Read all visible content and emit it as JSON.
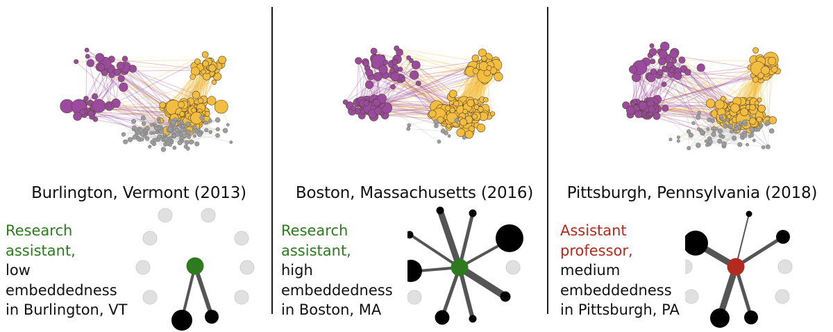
{
  "colors": {
    "purple": "#9b4b9f",
    "gold": "#f3bd3f",
    "gray_node": "#9d9d9d",
    "green": "#2d7a1f",
    "red": "#b32b1e",
    "black": "#000000",
    "inactive": "#e0e0e0"
  },
  "panels": [
    {
      "city": "Burlington, Vermont (2013)",
      "role_lines": [
        "Research",
        "assistant,"
      ],
      "role_color": "#2d7a1f",
      "detail_lines": [
        "low",
        "embeddedness",
        "in Burlington, VT"
      ],
      "network": {
        "purple": 55,
        "gold": 150,
        "gray": 140
      },
      "ego": {
        "center_color": "#2d7a1f",
        "links": [
          {
            "target": "bottom-left-node",
            "weight": 4,
            "size": "large"
          },
          {
            "target": "bottom-right-node",
            "weight": 6,
            "size": "small"
          }
        ],
        "inactive_slots": 8
      }
    },
    {
      "city": "Boston, Massachusetts (2016)",
      "role_lines": [
        "Research",
        "assistant,"
      ],
      "role_color": "#2d7a1f",
      "detail_lines": [
        "high",
        "embeddedness",
        "in Boston, MA"
      ],
      "network": {
        "purple": 90,
        "gold": 240,
        "gray": 10
      },
      "ego": {
        "center_color": "#2d7a1f",
        "links": [
          {
            "target": "upper-left-node",
            "weight": 4,
            "size": "tiny"
          },
          {
            "target": "top-left-node",
            "weight": 9,
            "size": "tiny"
          },
          {
            "target": "top-right-node",
            "weight": 5,
            "size": "tiny"
          },
          {
            "target": "upper-right-node",
            "weight": 4,
            "size": "large"
          },
          {
            "target": "left-node",
            "weight": 4,
            "size": "large"
          },
          {
            "target": "lower-right-node",
            "weight": 10,
            "size": "small"
          },
          {
            "target": "bottom-left-node",
            "weight": 5,
            "size": "small"
          },
          {
            "target": "bottom-right-node",
            "weight": 6,
            "size": "tiny"
          }
        ],
        "inactive_slots": 2
      }
    },
    {
      "city": "Pittsburgh, Pennsylvania (2018)",
      "role_lines": [
        "Assistant",
        "professor,"
      ],
      "role_color": "#b32b1e",
      "detail_lines": [
        "medium",
        "embeddedness",
        "in Pittsburgh, PA"
      ],
      "network": {
        "purple": 80,
        "gold": 200,
        "gray": 70
      },
      "ego": {
        "center_color": "#b32b1e",
        "links": [
          {
            "target": "upper-left-node",
            "weight": 9,
            "size": "large"
          },
          {
            "target": "top-node",
            "weight": 2,
            "size": "tiny"
          },
          {
            "target": "right-node",
            "weight": 5,
            "size": "small"
          },
          {
            "target": "bottom-left-node",
            "weight": 9,
            "size": "large"
          },
          {
            "target": "bottom-right-node",
            "weight": 5,
            "size": "small"
          }
        ],
        "inactive_slots": 5
      }
    }
  ]
}
